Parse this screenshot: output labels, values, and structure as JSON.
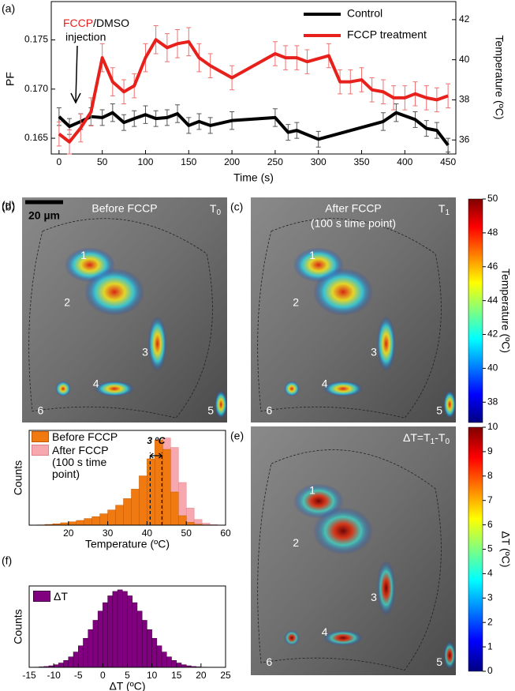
{
  "chart_data": [
    {
      "type": "line",
      "panel_label": "(a)",
      "xlabel": "Time (s)",
      "ylabel": "PF",
      "y2label": "Temperature (ºC)",
      "xlim": [
        -9,
        459
      ],
      "xticks": [
        0,
        50,
        100,
        150,
        200,
        250,
        300,
        350,
        400,
        450
      ],
      "ylim": [
        0.1634,
        0.1789
      ],
      "yticks": [
        0.165,
        {
          "value": 0.17,
          "label": "0.170"
        },
        0.175
      ],
      "y2lim": [
        35.3,
        42.9
      ],
      "y2ticks": [
        36,
        38,
        40,
        42
      ],
      "legend": "upper right",
      "annotation": [
        "FCCP",
        "/DMSO",
        "injection"
      ],
      "series": [
        {
          "name": "Control",
          "color": "#000000",
          "error_color": "#555555",
          "axis": "y",
          "x": [
            0,
            12,
            25,
            37,
            50,
            62,
            75,
            87,
            100,
            112,
            125,
            137,
            150,
            162,
            175,
            200,
            250,
            265,
            275,
            300,
            375,
            390,
            412,
            425,
            437,
            450
          ],
          "values": [
            0.1672,
            0.1662,
            0.1667,
            0.1672,
            0.1671,
            0.1676,
            0.1666,
            0.167,
            0.1674,
            0.167,
            0.1671,
            0.1675,
            0.1663,
            0.1667,
            0.1663,
            0.1668,
            0.1671,
            0.1656,
            0.1658,
            0.1649,
            0.1667,
            0.1676,
            0.1669,
            0.166,
            0.1658,
            0.1643
          ],
          "errors": [
            0.0009,
            0.0008,
            0.0008,
            0.0009,
            0.0008,
            0.0009,
            0.0008,
            0.0008,
            0.0009,
            0.0008,
            0.0008,
            0.0009,
            0.0008,
            0.0008,
            0.0008,
            0.0009,
            0.0009,
            0.0008,
            0.0008,
            0.0008,
            0.0009,
            0.0009,
            0.0008,
            0.0008,
            0.0008,
            0.0007
          ]
        },
        {
          "name": "FCCP treatment",
          "color": "#e8201c",
          "error_color": "#f07070",
          "axis": "y2",
          "x": [
            0,
            12,
            25,
            37,
            50,
            62,
            75,
            87,
            100,
            112,
            125,
            137,
            150,
            162,
            175,
            200,
            250,
            262,
            275,
            287,
            312,
            325,
            337,
            350,
            362,
            375,
            387,
            400,
            412,
            425,
            437,
            450
          ],
          "values": [
            36.3,
            35.9,
            36.6,
            37.4,
            40.1,
            38.9,
            38.4,
            38.7,
            40.1,
            41.0,
            40.6,
            40.8,
            40.9,
            40.1,
            39.7,
            39.1,
            40.3,
            40.1,
            40.1,
            39.9,
            40.2,
            38.9,
            38.9,
            39.0,
            38.5,
            38.4,
            38.1,
            38.1,
            38.3,
            38.1,
            38.0,
            38.2
          ],
          "errors": [
            0.6,
            0.6,
            0.7,
            0.7,
            0.7,
            0.7,
            0.6,
            0.6,
            0.7,
            0.7,
            0.7,
            0.7,
            0.7,
            0.7,
            0.6,
            0.6,
            0.6,
            0.6,
            0.6,
            0.6,
            0.6,
            0.6,
            0.6,
            0.6,
            0.6,
            0.6,
            0.6,
            0.6,
            0.6,
            0.6,
            0.6,
            0.6
          ]
        }
      ]
    },
    {
      "type": "histogram",
      "panel_label": "(d)",
      "xlabel": "Temperature (ºC)",
      "ylabel": "Counts",
      "bins": [
        10,
        12,
        14,
        16,
        18,
        20,
        22,
        24,
        26,
        28,
        30,
        32,
        34,
        36,
        38,
        40,
        42,
        44,
        46,
        48,
        50,
        52,
        54,
        56,
        58,
        60
      ],
      "xlim": [
        10,
        60
      ],
      "xticks": [
        20,
        30,
        40,
        50,
        60
      ],
      "ylim": [
        0,
        100
      ],
      "reference_lines": [
        40.8,
        43.8
      ],
      "annotation": "3 ºC",
      "series": [
        {
          "name": "Before FCCP",
          "color": "#f07a10",
          "edge": "#c45800",
          "values": [
            0,
            0.3,
            0.8,
            1.5,
            2.5,
            3.5,
            5,
            7,
            9,
            12,
            16,
            21,
            28,
            38,
            52,
            70,
            90,
            80,
            35,
            10,
            3,
            1,
            0.3,
            0.1,
            0
          ]
        },
        {
          "name": "After FCCP (100 s time point)",
          "color": "#f6a8ae",
          "edge": "#e08088",
          "values": [
            0,
            0.1,
            0.3,
            0.8,
            1.5,
            2.5,
            3.5,
            5,
            7,
            9,
            12,
            16,
            21,
            28,
            38,
            52,
            72,
            92,
            82,
            45,
            18,
            6,
            2,
            0.5,
            0.1
          ]
        }
      ]
    },
    {
      "type": "histogram",
      "panel_label": "(f)",
      "xlabel": "ΔT (ºC)",
      "ylabel": "Counts",
      "bins": [
        -15,
        -14,
        -13,
        -12,
        -11,
        -10,
        -9,
        -8,
        -7,
        -6,
        -5,
        -4,
        -3,
        -2,
        -1,
        0,
        1,
        2,
        3,
        4,
        5,
        6,
        7,
        8,
        9,
        10,
        11,
        12,
        13,
        14,
        15,
        16,
        17,
        18,
        19,
        20,
        21,
        22,
        23,
        24,
        25
      ],
      "xlim": [
        -15,
        25
      ],
      "xticks": [
        -15,
        -10,
        -5,
        0,
        5,
        10,
        15,
        20,
        25
      ],
      "ylim": [
        0,
        105
      ],
      "series": [
        {
          "name": "ΔT",
          "color": "#800080",
          "edge": "#3a003a",
          "values": [
            0.15,
            0.31,
            0.6,
            1.1,
            2.0,
            3.4,
            5.6,
            8.9,
            13.5,
            19.8,
            27.8,
            37.5,
            48.7,
            60.7,
            72.6,
            83.5,
            92.3,
            98,
            100,
            98,
            92.3,
            83.5,
            72.6,
            60.7,
            48.7,
            37.5,
            27.8,
            19.8,
            13.5,
            8.9,
            5.6,
            3.4,
            2.0,
            1.1,
            0.6,
            0.3,
            0.15,
            0.08,
            0.04,
            0.02
          ]
        }
      ]
    },
    {
      "type": "colorbar",
      "ylabel": "Temperature (ºC)",
      "colormap": "jet",
      "ylim": [
        36.8,
        50
      ],
      "yticks": [
        38,
        40,
        42,
        44,
        46,
        48,
        50
      ]
    },
    {
      "type": "colorbar",
      "ylabel": "ΔT (ºC)",
      "colormap": "jet",
      "ylim": [
        0,
        10
      ],
      "yticks": [
        0,
        1,
        2,
        3,
        4,
        5,
        6,
        7,
        8,
        9,
        10
      ]
    }
  ],
  "images": [
    {
      "panel_label": "(b)",
      "title": [
        "Before FCCP"
      ],
      "time_label": [
        [
          "T",
          "0"
        ]
      ],
      "scale_bar": "20 µm",
      "cells": [
        "1",
        "2",
        "3",
        "4",
        "5",
        "6"
      ]
    },
    {
      "panel_label": "(c)",
      "title": [
        "After FCCP",
        "(100 s time point)"
      ],
      "time_label": [
        [
          "T",
          "1"
        ]
      ],
      "cells": [
        "1",
        "2",
        "3",
        "4",
        "5",
        "6"
      ]
    },
    {
      "panel_label": "(e)",
      "title": [],
      "time_label": [
        [
          "ΔT=T",
          "1"
        ],
        [
          "-T",
          "0"
        ]
      ],
      "cells": [
        "1",
        "2",
        "3",
        "4",
        "5",
        "6"
      ]
    }
  ]
}
